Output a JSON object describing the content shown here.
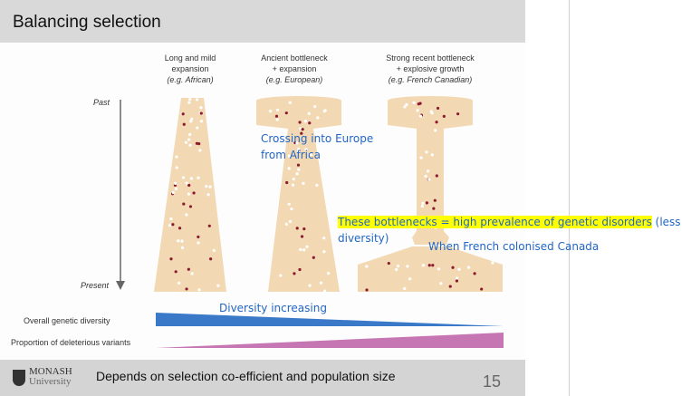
{
  "slide": {
    "title": "Balancing selection",
    "columns": [
      {
        "line1": "Long and mild",
        "line2": "expansion",
        "example": "(e.g. African)"
      },
      {
        "line1": "Ancient bottleneck",
        "line2": "+ expansion",
        "example": "(e.g. European)"
      },
      {
        "line1": "Strong recent bottleneck",
        "line2": "+ explosive growth",
        "example": "(e.g. French Canadian)"
      }
    ],
    "time_axis": {
      "top": "Past",
      "bottom": "Present"
    },
    "rows": {
      "diversity": "Overall genetic diversity",
      "deleterious": "Proportion of deleterious variants"
    },
    "colors": {
      "population": "#f2d9b4",
      "deleterious_dot": "#8b1a2e",
      "diversity": "#3a78c8",
      "deleterious_bar": "#c576b3"
    }
  },
  "annotations": {
    "europe_line1": "Crossing into Europe",
    "europe_line2": "from Africa",
    "bottleneck_highlight": "These bottlenecks = high prevalence of genetic disorders",
    "bottleneck_rest1": " (less",
    "bottleneck_rest2": "diversity)",
    "french": "When French colonised Canada",
    "diversity": "Diversity increasing"
  },
  "footer": {
    "logo_line1": "MONASH",
    "logo_line2": "University",
    "text": "Depends on selection co-efficient and population size",
    "page_number": "15"
  }
}
